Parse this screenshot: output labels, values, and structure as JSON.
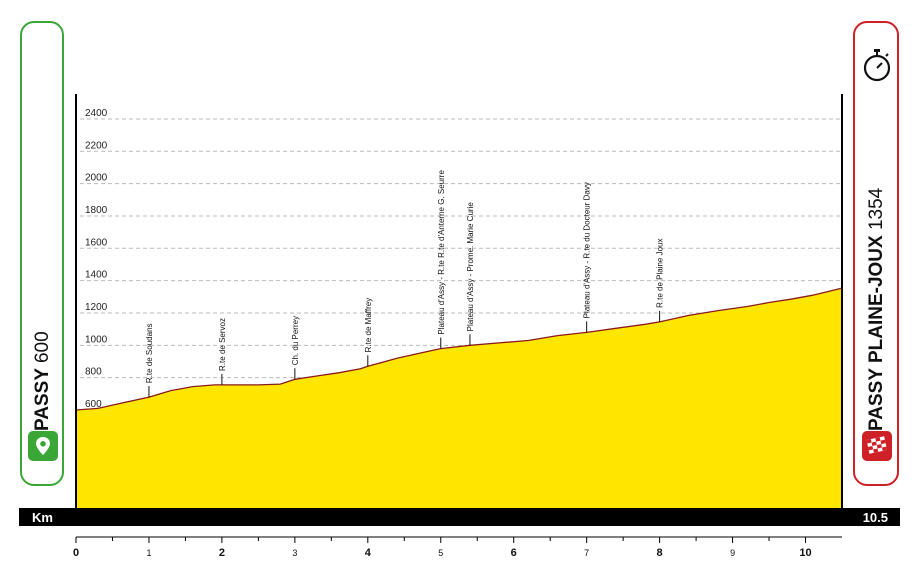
{
  "start": {
    "name": "PASSY",
    "altitude": "600",
    "icon": "map-pin-icon",
    "color": "#3aa636"
  },
  "finish": {
    "name": "PASSY PLAINE-JOUX",
    "altitude": "1354",
    "icons": [
      "stopwatch-icon",
      "checkered-flag-icon"
    ],
    "color": "#cf2027"
  },
  "distance_bar": {
    "label": "Km",
    "total": "10.5"
  },
  "chart_data": {
    "type": "area",
    "title": "",
    "xlabel": "Km",
    "ylabel": "",
    "xlim": [
      0,
      10.5
    ],
    "ylim": [
      0,
      2500
    ],
    "y_ticks": [
      600,
      800,
      1000,
      1200,
      1400,
      1600,
      1800,
      2000,
      2200,
      2400
    ],
    "x_ticks": [
      0,
      1,
      2,
      3,
      4,
      5,
      6,
      7,
      8,
      9,
      10
    ],
    "grid": true,
    "fill_color": "#ffe600",
    "line_color": "#8b1a1a",
    "series": [
      {
        "x": [
          0,
          0.3,
          0.6,
          1.0,
          1.3,
          1.6,
          1.9,
          2.2,
          2.5,
          2.8,
          3.0,
          3.3,
          3.6,
          3.9,
          4.0,
          4.4,
          4.8,
          5.0,
          5.4,
          5.8,
          6.2,
          6.6,
          7.0,
          7.4,
          7.8,
          8.0,
          8.4,
          8.8,
          9.2,
          9.5,
          9.8,
          10.1,
          10.5
        ],
        "y": [
          600,
          610,
          640,
          680,
          720,
          745,
          755,
          755,
          755,
          760,
          790,
          810,
          830,
          855,
          870,
          920,
          960,
          980,
          1000,
          1015,
          1030,
          1060,
          1080,
          1105,
          1130,
          1145,
          1185,
          1215,
          1240,
          1265,
          1285,
          1310,
          1354
        ]
      }
    ],
    "annotations": [
      {
        "km": 1.0,
        "label": "R.te de Soudans"
      },
      {
        "km": 2.0,
        "label": "R.te de Servoz"
      },
      {
        "km": 3.0,
        "label": "Ch. du Perrey"
      },
      {
        "km": 4.0,
        "label": "R.te de Maffrey"
      },
      {
        "km": 5.0,
        "label": "Plateau d'Assy - R.te R.te d'Anterne G. Seurre"
      },
      {
        "km": 5.4,
        "label": "Plateau d'Assy - Prome. Marie Curie"
      },
      {
        "km": 7.0,
        "label": "Plateau d'Assy - R.te du Docteur Davy"
      },
      {
        "km": 8.0,
        "label": "R.te de Plaine Joux"
      }
    ]
  }
}
